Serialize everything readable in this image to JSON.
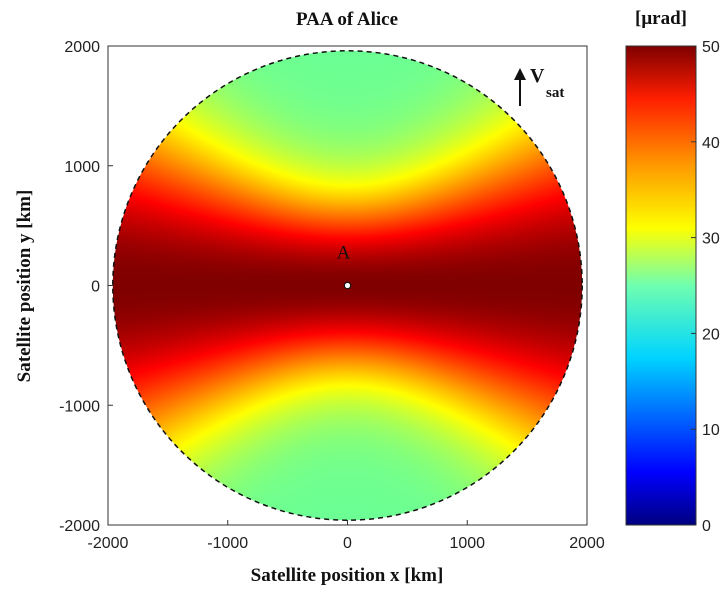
{
  "chart_data": {
    "type": "heatmap",
    "title": "PAA of Alice",
    "xlabel": "Satellite position  x  [km]",
    "ylabel": "Satellite position  y  [km]",
    "xlim": [
      -2000,
      2000
    ],
    "ylim": [
      -2000,
      2000
    ],
    "x_ticks": [
      "-2000",
      "-1000",
      "0",
      "1000",
      "2000"
    ],
    "y_ticks": [
      "-2000",
      "-1000",
      "0",
      "1000",
      "2000"
    ],
    "visible_region": {
      "shape": "circle",
      "center": [
        0,
        0
      ],
      "radius": 1960,
      "border": "dashed"
    },
    "field_samples": [
      {
        "x": 0,
        "y": 1800,
        "value": 24
      },
      {
        "x": 0,
        "y": 1000,
        "value": 31
      },
      {
        "x": 0,
        "y": 700,
        "value": 36
      },
      {
        "x": 0,
        "y": 300,
        "value": 48
      },
      {
        "x": 0,
        "y": 0,
        "value": 50
      },
      {
        "x": 1000,
        "y": 0,
        "value": 50
      },
      {
        "x": -1000,
        "y": 0,
        "value": 50
      },
      {
        "x": 1000,
        "y": 1000,
        "value": 42
      },
      {
        "x": -1000,
        "y": -1000,
        "value": 42
      },
      {
        "x": 1500,
        "y": 1200,
        "value": 38
      },
      {
        "x": 0,
        "y": -700,
        "value": 36
      },
      {
        "x": 0,
        "y": -1800,
        "value": 24
      }
    ],
    "colorbar": {
      "unit": "[μrad]",
      "range": [
        0,
        50
      ],
      "ticks": [
        "0",
        "10",
        "20",
        "30",
        "40",
        "50"
      ],
      "colormap": "jet"
    },
    "annotations": {
      "site_label": "A",
      "velocity_label": "V",
      "velocity_subscript": "sat",
      "site_position": [
        0,
        0
      ]
    }
  }
}
